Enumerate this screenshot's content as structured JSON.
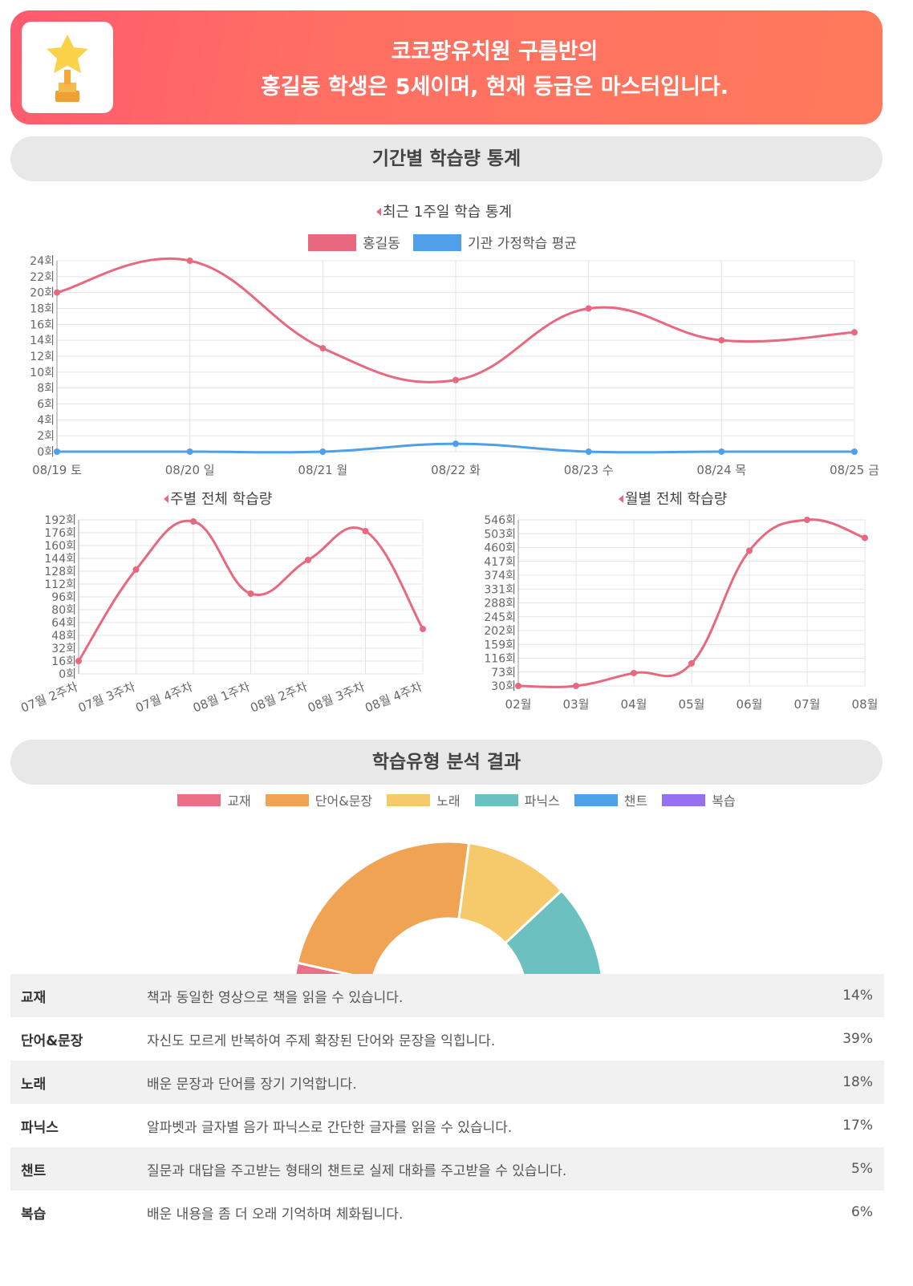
{
  "banner": {
    "line1": "코코팡유치원 구름반의",
    "line2": "홍길동 학생은 5세이며, 현재 등급은 마스터입니다."
  },
  "section1_title": "기간별 학습량 통계",
  "section2_title": "학습유형 분석 결과",
  "colors": {
    "pink": "#e8697f",
    "blue": "#4fa0e8",
    "banner_start": "#ff5a6e",
    "banner_end": "#ff7a5c"
  },
  "chart_data": [
    {
      "type": "line",
      "title": "최근 1주일 학습 통계",
      "categories": [
        "08/19 토",
        "08/20 일",
        "08/21 월",
        "08/22 화",
        "08/23 수",
        "08/24 목",
        "08/25 금"
      ],
      "series": [
        {
          "name": "홍길동",
          "values": [
            20,
            24,
            13,
            9,
            18,
            14,
            15
          ],
          "color": "#e8697f"
        },
        {
          "name": "기관 가정학습 평균",
          "values": [
            0,
            0,
            0,
            1,
            0,
            0,
            0
          ],
          "color": "#4fa0e8"
        }
      ],
      "y_ticks": [
        "0회",
        "2회",
        "4회",
        "6회",
        "8회",
        "10회",
        "12회",
        "14회",
        "16회",
        "18회",
        "20회",
        "22회",
        "24회"
      ],
      "ylim": [
        0,
        24
      ],
      "legend": "top",
      "grid": true
    },
    {
      "type": "line",
      "title": "주별 전체 학습량",
      "categories": [
        "07월 2주차",
        "07월 3주차",
        "07월 4주차",
        "08월 1주차",
        "08월 2주차",
        "08월 3주차",
        "08월 4주차"
      ],
      "series": [
        {
          "values": [
            16,
            130,
            190,
            100,
            142,
            178,
            56
          ],
          "color": "#e8697f"
        }
      ],
      "y_ticks": [
        "0회",
        "16회",
        "32회",
        "48회",
        "64회",
        "80회",
        "96회",
        "112회",
        "128회",
        "144회",
        "160회",
        "176회",
        "192회"
      ],
      "ylim": [
        0,
        192
      ],
      "grid": true
    },
    {
      "type": "line",
      "title": "월별 전체 학습량",
      "categories": [
        "02월",
        "03월",
        "04월",
        "05월",
        "06월",
        "07월",
        "08월"
      ],
      "series": [
        {
          "values": [
            30,
            30,
            70,
            100,
            450,
            546,
            490
          ],
          "color": "#e8697f"
        }
      ],
      "y_ticks": [
        "30회",
        "73회",
        "116회",
        "159회",
        "202회",
        "245회",
        "288회",
        "331회",
        "374회",
        "417회",
        "460회",
        "503회",
        "546회"
      ],
      "ylim": [
        30,
        546
      ],
      "grid": true
    },
    {
      "type": "pie",
      "categories": [
        "교재",
        "단어&문장",
        "노래",
        "파닉스",
        "챈트",
        "복습"
      ],
      "values": [
        14,
        39,
        18,
        17,
        5,
        6
      ],
      "colors": [
        "#ec6f86",
        "#f0a353",
        "#f6c96a",
        "#6cc0c0",
        "#4fa0e8",
        "#9670f0"
      ],
      "legend": "top"
    }
  ],
  "table": [
    {
      "name": "교재",
      "desc": "책과 동일한 영상으로 책을 읽을 수 있습니다.",
      "pct": "14%"
    },
    {
      "name": "단어&문장",
      "desc": "자신도 모르게 반복하여 주제 확장된 단어와 문장을 익힙니다.",
      "pct": "39%"
    },
    {
      "name": "노래",
      "desc": "배운 문장과 단어를 장기 기억합니다.",
      "pct": "18%"
    },
    {
      "name": "파닉스",
      "desc": "알파벳과 글자별 음가 파닉스로 간단한 글자를 읽을 수 있습니다.",
      "pct": "17%"
    },
    {
      "name": "챈트",
      "desc": "질문과 대답을 주고받는 형태의 챈트로 실제 대화를 주고받을 수 있습니다.",
      "pct": "5%"
    },
    {
      "name": "복습",
      "desc": "배운 내용을 좀 더 오래 기억하며 체화됩니다.",
      "pct": "6%"
    }
  ]
}
